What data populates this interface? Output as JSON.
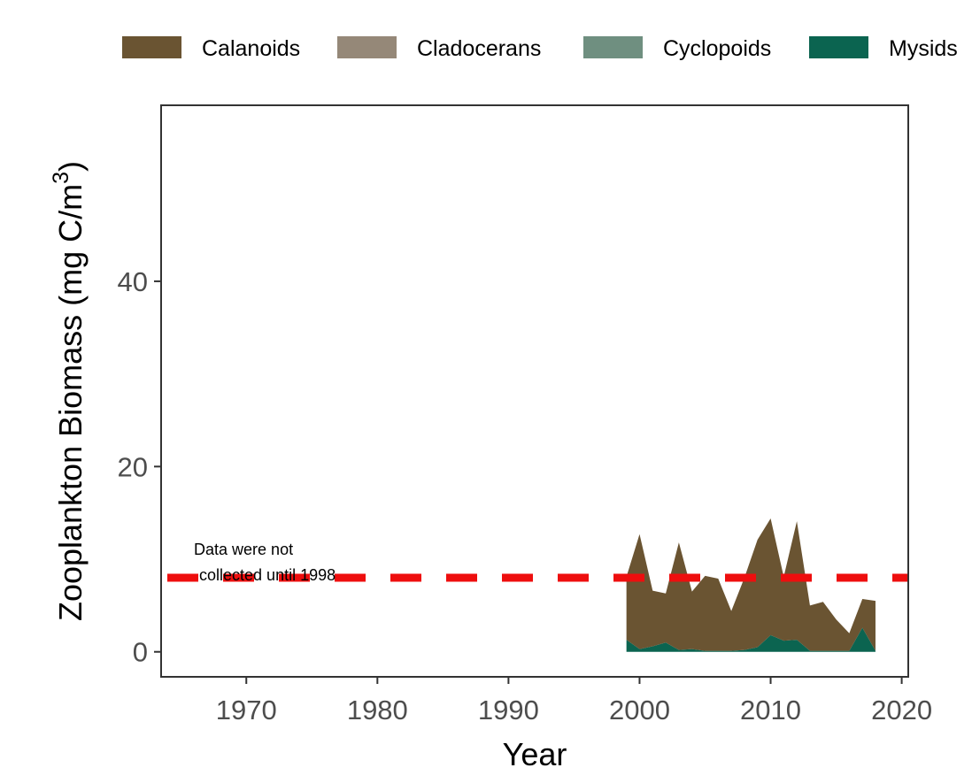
{
  "chart_data": {
    "type": "area",
    "stacked": true,
    "xlabel": "Year",
    "ylabel": "Zooplankton Biomass (mg C/m",
    "ylabel_superscript": "3",
    "ylabel_close": ")",
    "xlim": [
      1963.5,
      2020.5
    ],
    "ylim": [
      -2.7,
      59
    ],
    "x_ticks": [
      1970,
      1980,
      1990,
      2000,
      2010,
      2020
    ],
    "y_ticks": [
      0,
      20,
      40
    ],
    "grid": false,
    "legend": {
      "position": "top",
      "entries": [
        {
          "name": "Calanoids",
          "color": "#6a5432"
        },
        {
          "name": "Cladocerans",
          "color": "#958878"
        },
        {
          "name": "Cyclopoids",
          "color": "#6f8f80"
        },
        {
          "name": "Mysids",
          "color": "#0b6450"
        }
      ]
    },
    "x": [
      1999,
      2000,
      2001,
      2002,
      2003,
      2004,
      2005,
      2006,
      2007,
      2008,
      2009,
      2010,
      2011,
      2012,
      2013,
      2014,
      2015,
      2016,
      2017,
      2018
    ],
    "series": [
      {
        "name": "Mysids",
        "color": "#0b6450",
        "values": [
          1.3,
          0.3,
          0.6,
          1.0,
          0.2,
          0.3,
          0.1,
          0.1,
          0.1,
          0.2,
          0.5,
          1.8,
          1.2,
          1.3,
          0.1,
          0.1,
          0.1,
          0.1,
          2.6,
          0.1
        ]
      },
      {
        "name": "Cyclopoids",
        "color": "#6f8f80",
        "values": [
          0,
          0,
          0,
          0,
          0,
          0,
          0,
          0,
          0,
          0,
          0,
          0,
          0,
          0,
          0,
          0,
          0,
          0,
          0,
          0
        ]
      },
      {
        "name": "Cladocerans",
        "color": "#958878",
        "values": [
          0,
          0,
          0,
          0,
          0,
          0,
          0,
          0,
          0,
          0,
          0,
          0,
          0,
          0,
          0,
          0,
          0,
          0,
          0,
          0
        ]
      },
      {
        "name": "Calanoids",
        "color": "#6a5432",
        "values": [
          6.8,
          12.4,
          6.0,
          5.3,
          11.6,
          6.2,
          8.1,
          7.8,
          4.3,
          7.8,
          11.6,
          12.6,
          6.9,
          12.8,
          4.9,
          5.3,
          3.4,
          1.9,
          3.1,
          5.4
        ]
      }
    ],
    "reference_line": {
      "y": 8,
      "color": "#ee0e0e",
      "style": "dashed"
    },
    "annotation": {
      "lines": [
        "Data were not",
        "collected until 1998"
      ],
      "x": 1966,
      "y": 10.5
    }
  }
}
